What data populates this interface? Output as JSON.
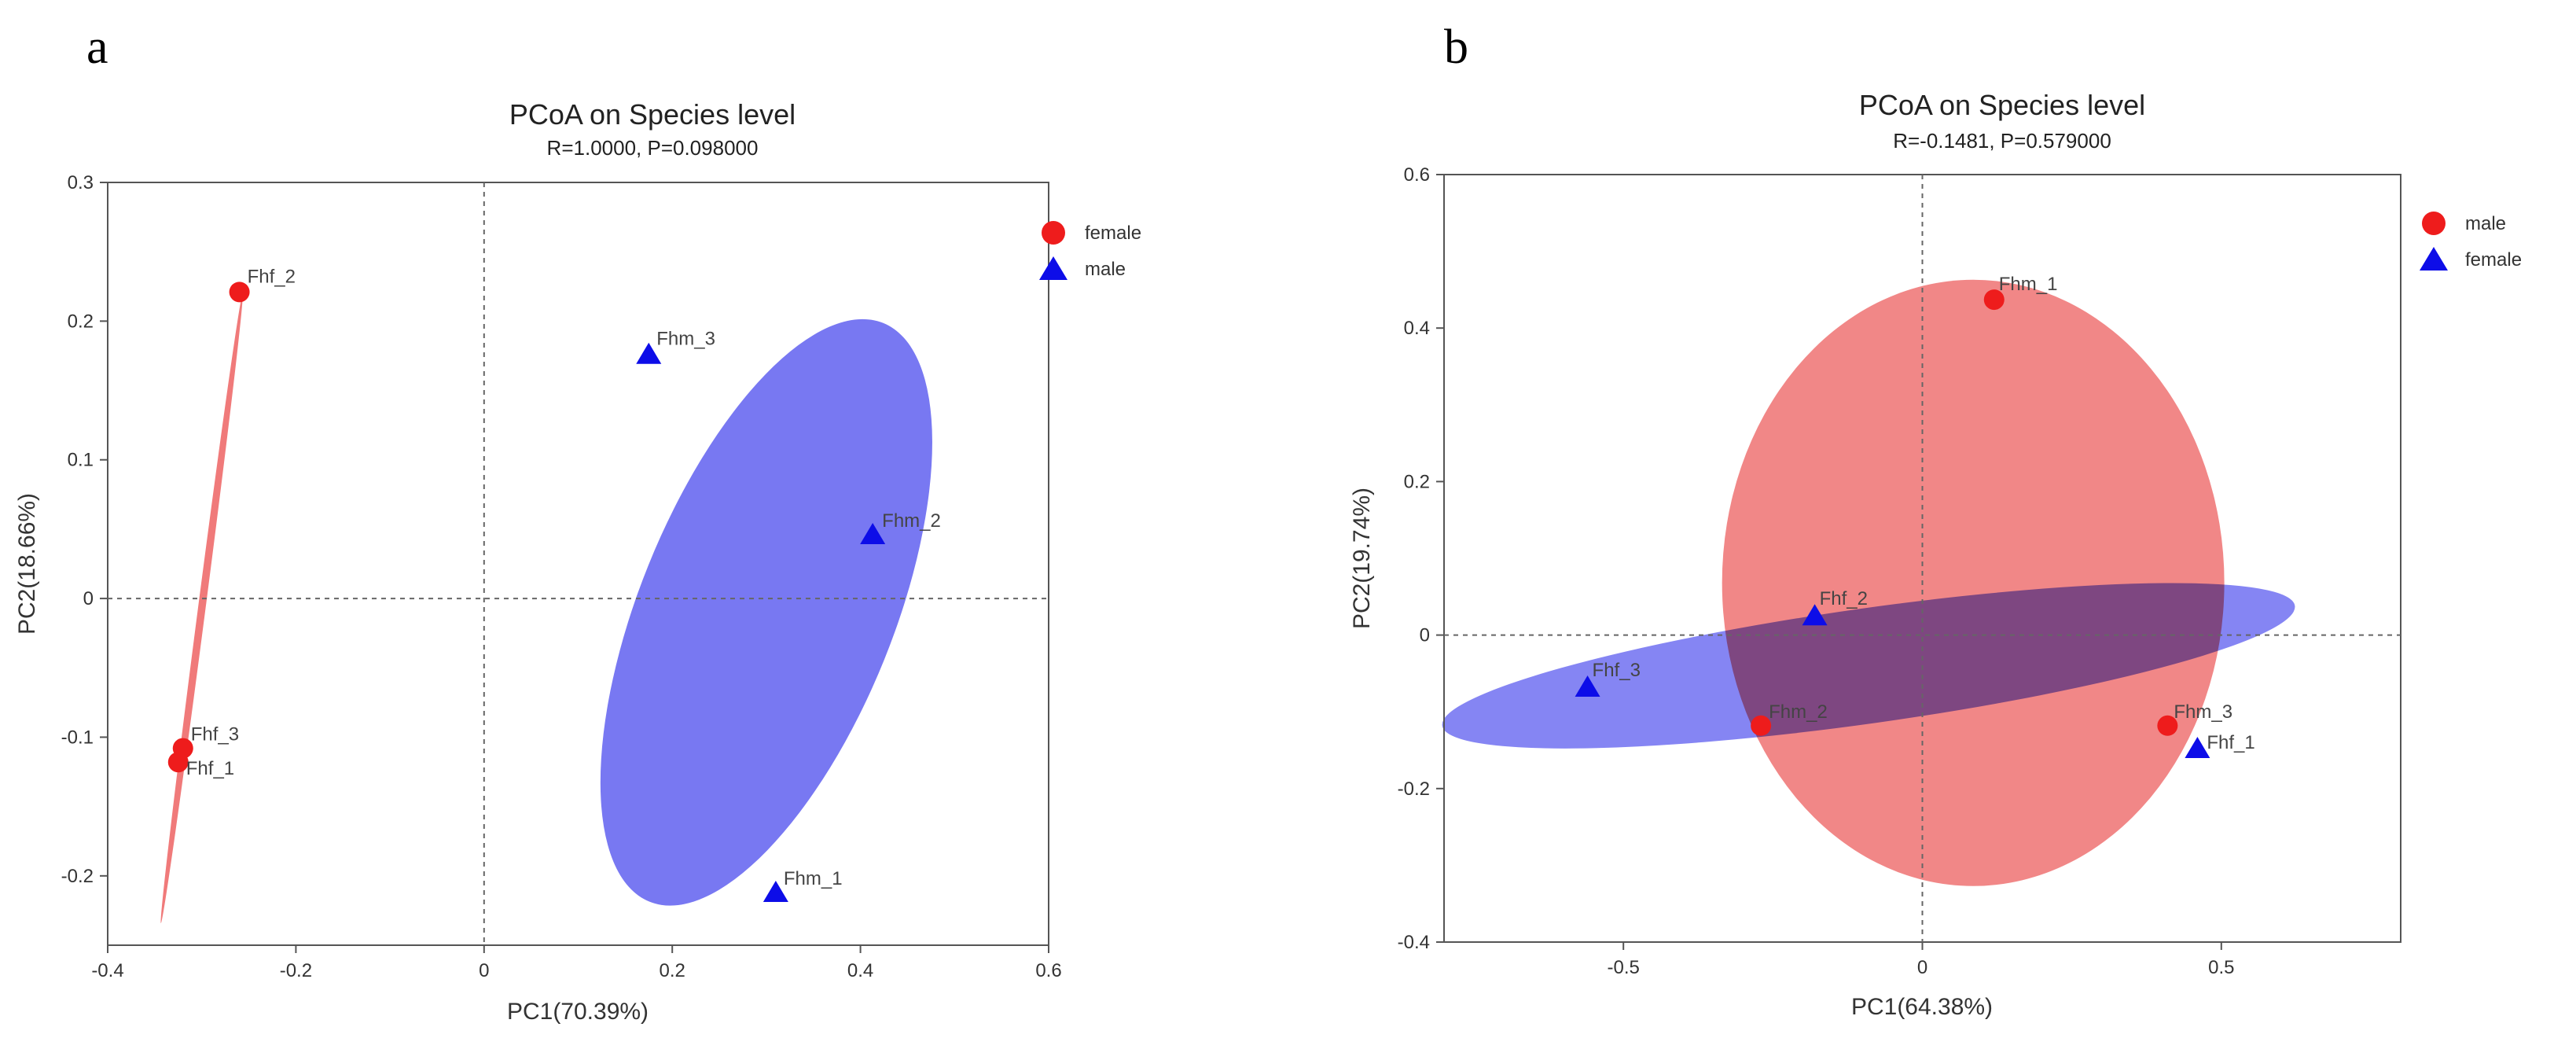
{
  "chart_data": [
    {
      "type": "scatter",
      "panel_letter": "a",
      "title": "PCoA on Species level",
      "subtitle": "R=1.0000, P=0.098000",
      "xlabel": "PC1(70.39%)",
      "ylabel": "PC2(18.66%)",
      "xlim": [
        -0.4,
        0.6
      ],
      "ylim": [
        -0.25,
        0.3
      ],
      "xticks": [
        -0.4,
        -0.2,
        0,
        0.2,
        0.4,
        0.6
      ],
      "xtick_labels": [
        "-0.4",
        "-0.2",
        "0",
        "0.2",
        "0.4",
        "0.6"
      ],
      "yticks": [
        -0.2,
        -0.1,
        0,
        0.1,
        0.2,
        0.3
      ],
      "ytick_labels": [
        "-0.2",
        "-0.1",
        "0",
        "0.1",
        "0.2",
        "0.3"
      ],
      "legend_position": "top-right",
      "series": [
        {
          "name": "female",
          "marker": "circle",
          "color": "#ee1c1c",
          "ellipse_color": "#f07a7a",
          "points": [
            {
              "label": "Fhf_2",
              "x": -0.26,
              "y": 0.221
            },
            {
              "label": "Fhf_3",
              "x": -0.32,
              "y": -0.108
            },
            {
              "label": "Fhf_1",
              "x": -0.325,
              "y": -0.118
            }
          ],
          "ellipse": {
            "cx": -0.3,
            "cy": -0.007,
            "rx": 0.004,
            "ry": 0.229,
            "angle_deg": 7.4
          }
        },
        {
          "name": "male",
          "marker": "triangle",
          "color": "#0d0de8",
          "ellipse_color": "#7878f2",
          "points": [
            {
              "label": "Fhm_3",
              "x": 0.175,
              "y": 0.176
            },
            {
              "label": "Fhm_2",
              "x": 0.413,
              "y": 0.046
            },
            {
              "label": "Fhm_1",
              "x": 0.31,
              "y": -0.212
            }
          ],
          "ellipse": {
            "cx": 0.3,
            "cy": -0.01,
            "rx": 0.135,
            "ry": 0.225,
            "angle_deg": 22
          }
        }
      ]
    },
    {
      "type": "scatter",
      "panel_letter": "b",
      "title": "PCoA on Species level",
      "subtitle": "R=-0.1481, P=0.579000",
      "xlabel": "PC1(64.38%)",
      "ylabel": "PC2(19.74%)",
      "xlim": [
        -0.8,
        0.8
      ],
      "ylim": [
        -0.4,
        0.6
      ],
      "xticks": [
        -0.5,
        0,
        0.5
      ],
      "xtick_labels": [
        "-0.5",
        "0",
        "0.5"
      ],
      "yticks": [
        -0.4,
        -0.2,
        0,
        0.2,
        0.4,
        0.6
      ],
      "ytick_labels": [
        "-0.4",
        "-0.2",
        "0",
        "0.2",
        "0.4",
        "0.6"
      ],
      "legend_position": "top-right",
      "series": [
        {
          "name": "male",
          "marker": "circle",
          "color": "#ee1c1c",
          "ellipse_color": "#f07a7a",
          "points": [
            {
              "label": "Fhm_1",
              "x": 0.12,
              "y": 0.437
            },
            {
              "label": "Fhm_2",
              "x": -0.27,
              "y": -0.118
            },
            {
              "label": "Fhm_3",
              "x": 0.41,
              "y": -0.118
            }
          ],
          "ellipse": {
            "cx": 0.085,
            "cy": 0.068,
            "rx": 0.42,
            "ry": 0.395,
            "angle_deg": 0
          }
        },
        {
          "name": "female",
          "marker": "triangle",
          "color": "#0d0de8",
          "ellipse_color": "#7878f2",
          "points": [
            {
              "label": "Fhf_2",
              "x": -0.18,
              "y": 0.025
            },
            {
              "label": "Fhf_3",
              "x": -0.56,
              "y": -0.068
            },
            {
              "label": "Fhf_1",
              "x": 0.46,
              "y": -0.148
            }
          ],
          "ellipse": {
            "cx": -0.09,
            "cy": -0.04,
            "rx": 0.72,
            "ry": 0.075,
            "angle_deg": -8
          }
        }
      ]
    }
  ]
}
